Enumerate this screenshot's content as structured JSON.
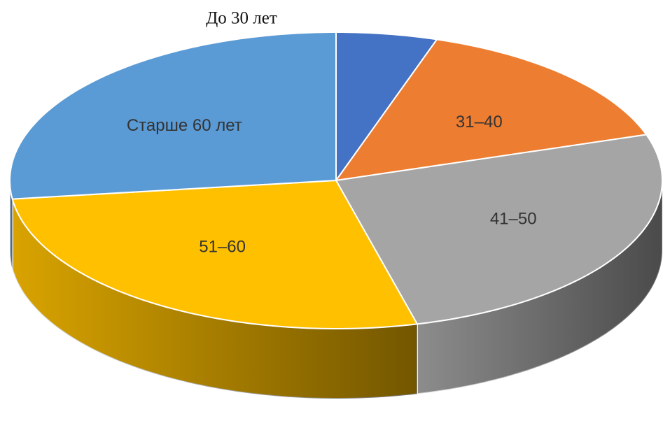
{
  "chart_data": {
    "type": "pie3d",
    "categories": [
      "До 30 лет",
      "31–40",
      "41–50",
      "51–60",
      "Старше 60 лет"
    ],
    "values": [
      5,
      15,
      26,
      27,
      27
    ],
    "colors": [
      "#4472c4",
      "#ed7d31",
      "#a5a5a5",
      "#ffc000",
      "#5b9bd5"
    ]
  }
}
